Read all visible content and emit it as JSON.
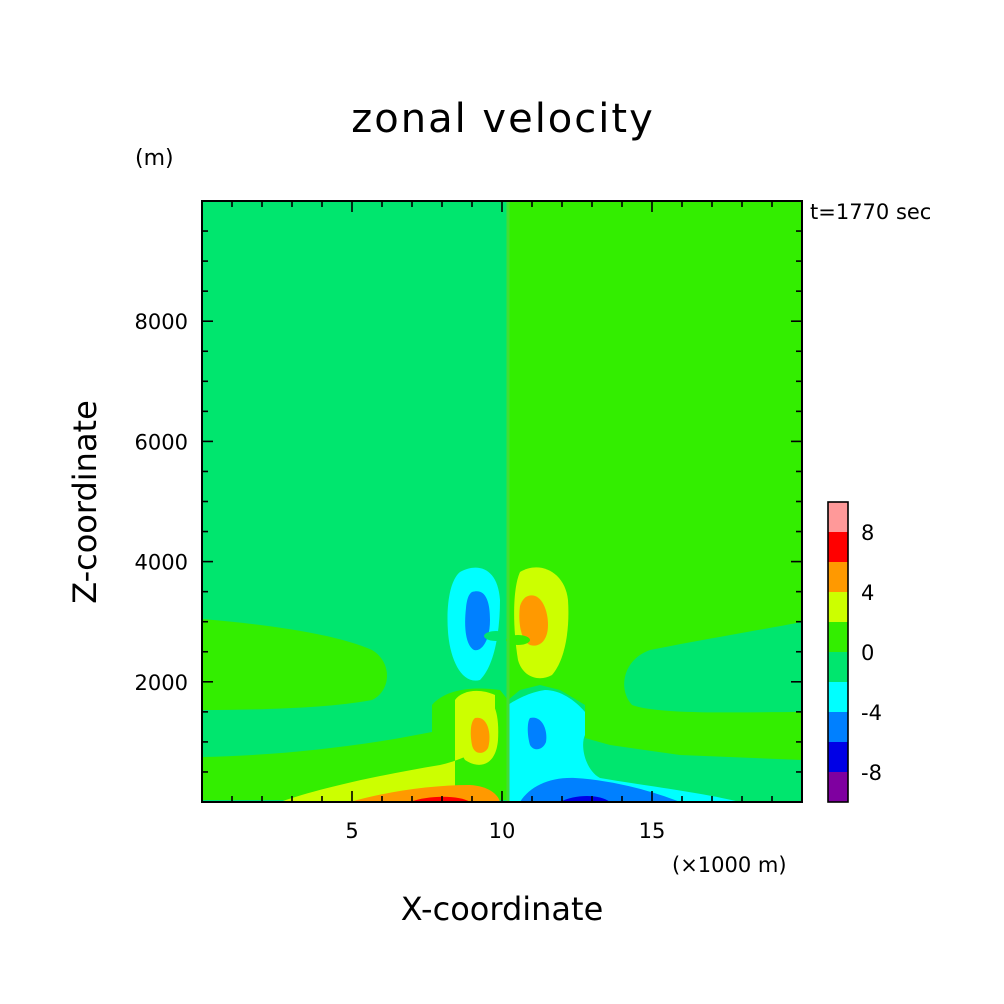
{
  "chart_data": {
    "type": "contour",
    "title": "zonal velocity",
    "time_label": "t=1770 sec",
    "xlabel": "X-coordinate",
    "ylabel": "Z-coordinate",
    "x_unit": "(×1000 m)",
    "y_unit": "(m)",
    "xlim": [
      0,
      20
    ],
    "ylim": [
      0,
      10000
    ],
    "x_ticks": [
      5,
      10,
      15
    ],
    "x_tick_labels": [
      "5",
      "10",
      "15"
    ],
    "y_ticks": [
      2000,
      4000,
      6000,
      8000
    ],
    "y_tick_labels": [
      "2000",
      "4000",
      "6000",
      "8000"
    ],
    "levels": [
      -10,
      -8,
      -6,
      -4,
      -2,
      0,
      2,
      4,
      6,
      8,
      10
    ],
    "colorbar_labels": [
      {
        "value": 8,
        "text": "8"
      },
      {
        "value": 4,
        "text": "4"
      },
      {
        "value": 0,
        "text": "0"
      },
      {
        "value": -4,
        "text": "-4"
      },
      {
        "value": -8,
        "text": "-8"
      }
    ],
    "colors": [
      "#7f00a0",
      "#0000e6",
      "#0080ff",
      "#00ffff",
      "#00e66e",
      "#33ee00",
      "#ccff00",
      "#ff9900",
      "#ff0000",
      "#ff9999"
    ],
    "field_features": [
      {
        "x": 9.1,
        "z": 3300,
        "value": -5,
        "note": "upper negative lobe"
      },
      {
        "x": 11.0,
        "z": 3300,
        "value": 5,
        "note": "upper positive lobe"
      },
      {
        "x": 9.2,
        "z": 1150,
        "value": 5,
        "note": "lower positive lobe"
      },
      {
        "x": 11.0,
        "z": 1200,
        "value": -5,
        "note": "lower negative lobe"
      },
      {
        "x": 8.0,
        "z": 0,
        "value": 8,
        "note": "surface maximum"
      },
      {
        "x": 12.2,
        "z": 0,
        "value": -8,
        "note": "surface minimum"
      }
    ]
  }
}
